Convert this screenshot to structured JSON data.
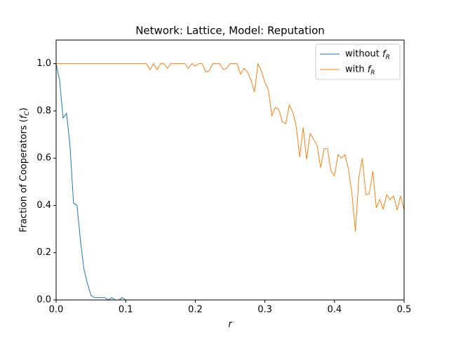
{
  "chart_data": {
    "type": "line",
    "title": "Network: Lattice, Model: Reputation",
    "xlabel": "r",
    "ylabel": "Fraction of Cooperators (f_C)",
    "x": [
      0,
      0.005,
      0.01,
      0.015,
      0.02,
      0.025,
      0.03,
      0.035,
      0.04,
      0.045,
      0.05,
      0.055,
      0.06,
      0.065,
      0.07,
      0.075,
      0.08,
      0.085,
      0.09,
      0.095,
      0.1,
      0.105,
      0.11,
      0.115,
      0.12,
      0.125,
      0.13,
      0.135,
      0.14,
      0.145,
      0.15,
      0.155,
      0.16,
      0.165,
      0.17,
      0.175,
      0.18,
      0.185,
      0.19,
      0.195,
      0.2,
      0.205,
      0.21,
      0.215,
      0.22,
      0.225,
      0.23,
      0.235,
      0.24,
      0.245,
      0.25,
      0.255,
      0.26,
      0.265,
      0.27,
      0.275,
      0.28,
      0.285,
      0.29,
      0.295,
      0.3,
      0.305,
      0.31,
      0.315,
      0.32,
      0.325,
      0.33,
      0.335,
      0.34,
      0.345,
      0.35,
      0.355,
      0.36,
      0.365,
      0.37,
      0.375,
      0.38,
      0.385,
      0.39,
      0.395,
      0.4,
      0.405,
      0.41,
      0.415,
      0.42,
      0.425,
      0.43,
      0.435,
      0.44,
      0.445,
      0.45,
      0.455,
      0.46,
      0.465,
      0.47,
      0.475,
      0.48,
      0.485,
      0.49,
      0.495,
      0.5
    ],
    "series": [
      {
        "name": "without f_R",
        "color": "#1f77b4",
        "values": [
          1.0,
          0.93,
          0.77,
          0.79,
          0.65,
          0.41,
          0.4,
          0.25,
          0.13,
          0.07,
          0.02,
          0.01,
          0.01,
          0.01,
          0.01,
          0,
          0.01,
          0,
          0,
          0.01,
          0,
          0,
          0,
          0,
          0,
          0,
          0,
          0,
          0,
          0,
          0,
          0,
          0,
          0,
          0,
          0,
          0,
          0,
          0,
          0,
          0,
          0,
          0,
          0,
          0,
          0,
          0,
          0,
          0,
          0,
          0,
          0,
          0,
          0,
          0,
          0,
          0,
          0,
          0,
          0,
          0,
          0,
          0,
          0,
          0,
          0,
          0,
          0,
          0,
          0,
          0,
          0,
          0,
          0,
          0,
          0,
          0,
          0,
          0,
          0,
          0,
          0,
          0,
          0,
          0,
          0,
          0,
          0,
          0,
          0,
          0,
          0,
          0,
          0,
          0,
          0,
          0,
          0,
          0,
          0,
          0
        ]
      },
      {
        "name": "with f_R",
        "color": "#ff7f0e",
        "values": [
          1,
          1,
          1,
          1,
          1,
          1,
          1,
          1,
          1,
          1,
          1,
          1,
          1,
          1,
          1,
          1,
          1,
          1,
          1,
          1,
          1,
          1,
          1,
          1,
          1,
          1,
          1,
          0.975,
          1.0,
          0.975,
          1.0,
          1.0,
          0.98,
          1.0,
          1.0,
          1.0,
          1.0,
          1.0,
          0.98,
          1.0,
          0.99,
          1.0,
          1.0,
          0.965,
          0.97,
          1.0,
          1.0,
          1.0,
          0.975,
          0.98,
          1.0,
          1.0,
          1.0,
          0.955,
          0.98,
          0.965,
          0.93,
          0.88,
          1.0,
          0.97,
          0.92,
          0.89,
          0.78,
          0.815,
          0.805,
          0.755,
          0.745,
          0.825,
          0.795,
          0.735,
          0.605,
          0.73,
          0.595,
          0.705,
          0.68,
          0.655,
          0.56,
          0.64,
          0.64,
          0.545,
          0.525,
          0.615,
          0.6,
          0.615,
          0.555,
          0.45,
          0.29,
          0.52,
          0.6,
          0.445,
          0.45,
          0.545,
          0.39,
          0.425,
          0.385,
          0.445,
          0.425,
          0.44,
          0.38,
          0.44,
          0.38
        ]
      }
    ],
    "xlim": [
      0,
      0.5
    ],
    "ylim": [
      0,
      1.1
    ],
    "xticks": [
      {
        "value": 0,
        "label": "0.0"
      },
      0.1,
      0.2,
      0.3,
      0.4,
      0.5
    ],
    "yticks": [
      {
        "value": 0,
        "label": "0.0"
      },
      0.2,
      0.4,
      0.6,
      0.8,
      {
        "value": 1,
        "label": "1.0"
      }
    ],
    "legend": "upper right"
  }
}
